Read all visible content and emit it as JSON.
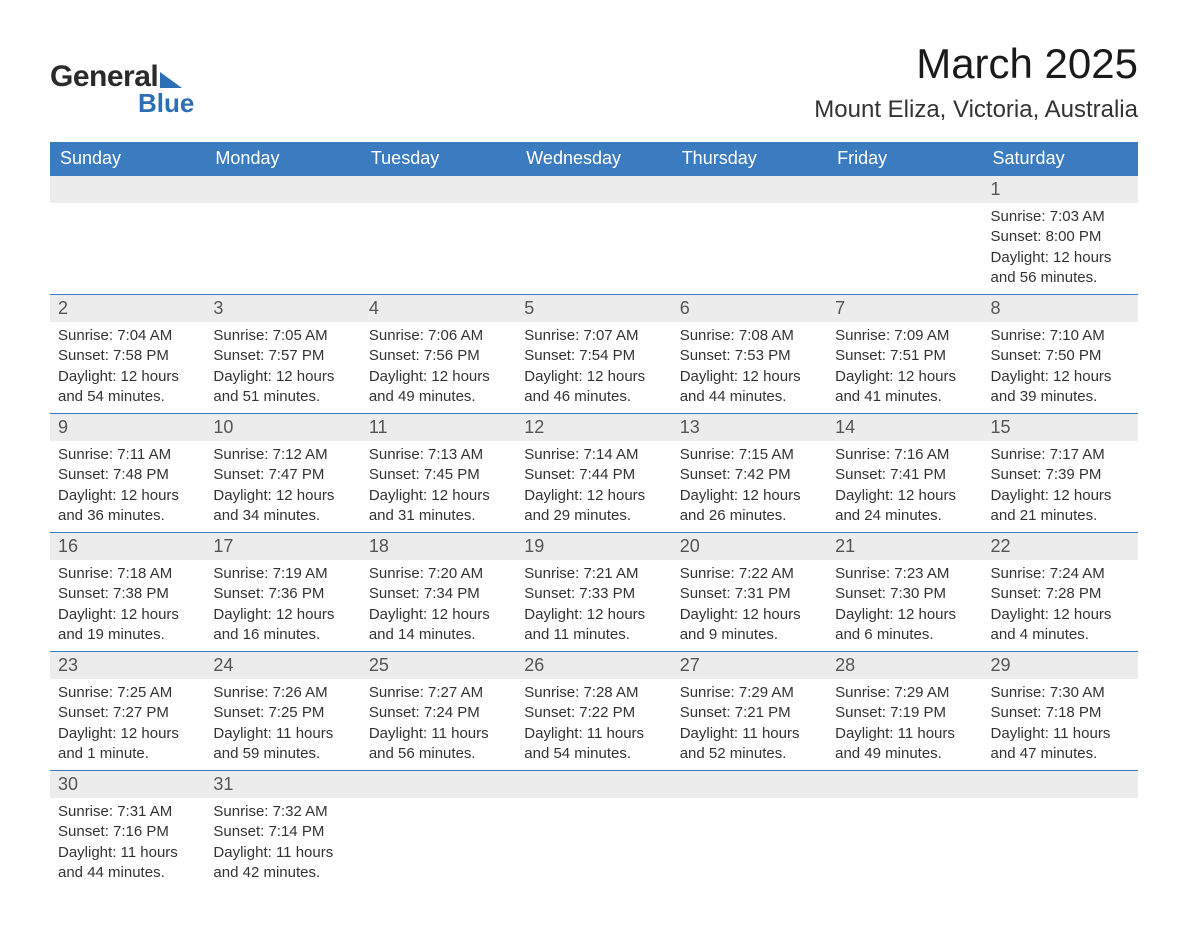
{
  "brand": {
    "word1": "General",
    "word2": "Blue"
  },
  "title": "March 2025",
  "location": "Mount Eliza, Victoria, Australia",
  "colors": {
    "header_bg": "#3b7bbf",
    "header_text": "#ffffff",
    "daynum_bg": "#ececec",
    "row_border": "#3b7bbf",
    "brand_blue": "#2d6fb4",
    "text": "#333333",
    "background": "#ffffff"
  },
  "day_headers": [
    "Sunday",
    "Monday",
    "Tuesday",
    "Wednesday",
    "Thursday",
    "Friday",
    "Saturday"
  ],
  "weeks": [
    [
      null,
      null,
      null,
      null,
      null,
      null,
      {
        "n": "1",
        "sunrise": "Sunrise: 7:03 AM",
        "sunset": "Sunset: 8:00 PM",
        "daylight": "Daylight: 12 hours and 56 minutes."
      }
    ],
    [
      {
        "n": "2",
        "sunrise": "Sunrise: 7:04 AM",
        "sunset": "Sunset: 7:58 PM",
        "daylight": "Daylight: 12 hours and 54 minutes."
      },
      {
        "n": "3",
        "sunrise": "Sunrise: 7:05 AM",
        "sunset": "Sunset: 7:57 PM",
        "daylight": "Daylight: 12 hours and 51 minutes."
      },
      {
        "n": "4",
        "sunrise": "Sunrise: 7:06 AM",
        "sunset": "Sunset: 7:56 PM",
        "daylight": "Daylight: 12 hours and 49 minutes."
      },
      {
        "n": "5",
        "sunrise": "Sunrise: 7:07 AM",
        "sunset": "Sunset: 7:54 PM",
        "daylight": "Daylight: 12 hours and 46 minutes."
      },
      {
        "n": "6",
        "sunrise": "Sunrise: 7:08 AM",
        "sunset": "Sunset: 7:53 PM",
        "daylight": "Daylight: 12 hours and 44 minutes."
      },
      {
        "n": "7",
        "sunrise": "Sunrise: 7:09 AM",
        "sunset": "Sunset: 7:51 PM",
        "daylight": "Daylight: 12 hours and 41 minutes."
      },
      {
        "n": "8",
        "sunrise": "Sunrise: 7:10 AM",
        "sunset": "Sunset: 7:50 PM",
        "daylight": "Daylight: 12 hours and 39 minutes."
      }
    ],
    [
      {
        "n": "9",
        "sunrise": "Sunrise: 7:11 AM",
        "sunset": "Sunset: 7:48 PM",
        "daylight": "Daylight: 12 hours and 36 minutes."
      },
      {
        "n": "10",
        "sunrise": "Sunrise: 7:12 AM",
        "sunset": "Sunset: 7:47 PM",
        "daylight": "Daylight: 12 hours and 34 minutes."
      },
      {
        "n": "11",
        "sunrise": "Sunrise: 7:13 AM",
        "sunset": "Sunset: 7:45 PM",
        "daylight": "Daylight: 12 hours and 31 minutes."
      },
      {
        "n": "12",
        "sunrise": "Sunrise: 7:14 AM",
        "sunset": "Sunset: 7:44 PM",
        "daylight": "Daylight: 12 hours and 29 minutes."
      },
      {
        "n": "13",
        "sunrise": "Sunrise: 7:15 AM",
        "sunset": "Sunset: 7:42 PM",
        "daylight": "Daylight: 12 hours and 26 minutes."
      },
      {
        "n": "14",
        "sunrise": "Sunrise: 7:16 AM",
        "sunset": "Sunset: 7:41 PM",
        "daylight": "Daylight: 12 hours and 24 minutes."
      },
      {
        "n": "15",
        "sunrise": "Sunrise: 7:17 AM",
        "sunset": "Sunset: 7:39 PM",
        "daylight": "Daylight: 12 hours and 21 minutes."
      }
    ],
    [
      {
        "n": "16",
        "sunrise": "Sunrise: 7:18 AM",
        "sunset": "Sunset: 7:38 PM",
        "daylight": "Daylight: 12 hours and 19 minutes."
      },
      {
        "n": "17",
        "sunrise": "Sunrise: 7:19 AM",
        "sunset": "Sunset: 7:36 PM",
        "daylight": "Daylight: 12 hours and 16 minutes."
      },
      {
        "n": "18",
        "sunrise": "Sunrise: 7:20 AM",
        "sunset": "Sunset: 7:34 PM",
        "daylight": "Daylight: 12 hours and 14 minutes."
      },
      {
        "n": "19",
        "sunrise": "Sunrise: 7:21 AM",
        "sunset": "Sunset: 7:33 PM",
        "daylight": "Daylight: 12 hours and 11 minutes."
      },
      {
        "n": "20",
        "sunrise": "Sunrise: 7:22 AM",
        "sunset": "Sunset: 7:31 PM",
        "daylight": "Daylight: 12 hours and 9 minutes."
      },
      {
        "n": "21",
        "sunrise": "Sunrise: 7:23 AM",
        "sunset": "Sunset: 7:30 PM",
        "daylight": "Daylight: 12 hours and 6 minutes."
      },
      {
        "n": "22",
        "sunrise": "Sunrise: 7:24 AM",
        "sunset": "Sunset: 7:28 PM",
        "daylight": "Daylight: 12 hours and 4 minutes."
      }
    ],
    [
      {
        "n": "23",
        "sunrise": "Sunrise: 7:25 AM",
        "sunset": "Sunset: 7:27 PM",
        "daylight": "Daylight: 12 hours and 1 minute."
      },
      {
        "n": "24",
        "sunrise": "Sunrise: 7:26 AM",
        "sunset": "Sunset: 7:25 PM",
        "daylight": "Daylight: 11 hours and 59 minutes."
      },
      {
        "n": "25",
        "sunrise": "Sunrise: 7:27 AM",
        "sunset": "Sunset: 7:24 PM",
        "daylight": "Daylight: 11 hours and 56 minutes."
      },
      {
        "n": "26",
        "sunrise": "Sunrise: 7:28 AM",
        "sunset": "Sunset: 7:22 PM",
        "daylight": "Daylight: 11 hours and 54 minutes."
      },
      {
        "n": "27",
        "sunrise": "Sunrise: 7:29 AM",
        "sunset": "Sunset: 7:21 PM",
        "daylight": "Daylight: 11 hours and 52 minutes."
      },
      {
        "n": "28",
        "sunrise": "Sunrise: 7:29 AM",
        "sunset": "Sunset: 7:19 PM",
        "daylight": "Daylight: 11 hours and 49 minutes."
      },
      {
        "n": "29",
        "sunrise": "Sunrise: 7:30 AM",
        "sunset": "Sunset: 7:18 PM",
        "daylight": "Daylight: 11 hours and 47 minutes."
      }
    ],
    [
      {
        "n": "30",
        "sunrise": "Sunrise: 7:31 AM",
        "sunset": "Sunset: 7:16 PM",
        "daylight": "Daylight: 11 hours and 44 minutes."
      },
      {
        "n": "31",
        "sunrise": "Sunrise: 7:32 AM",
        "sunset": "Sunset: 7:14 PM",
        "daylight": "Daylight: 11 hours and 42 minutes."
      },
      null,
      null,
      null,
      null,
      null
    ]
  ]
}
